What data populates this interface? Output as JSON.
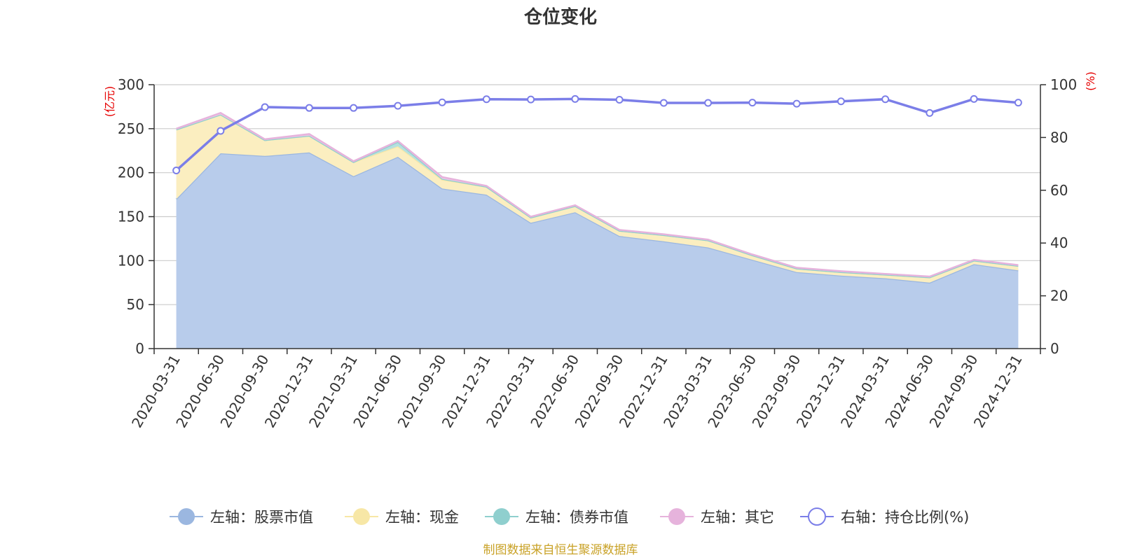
{
  "chart_data": {
    "type": "area",
    "title": "仓位变化",
    "categories": [
      "2020-03-31",
      "2020-06-30",
      "2020-09-30",
      "2020-12-31",
      "2021-03-31",
      "2021-06-30",
      "2021-09-30",
      "2021-12-31",
      "2022-03-31",
      "2022-06-30",
      "2022-09-30",
      "2022-12-31",
      "2023-03-31",
      "2023-06-30",
      "2023-09-30",
      "2023-12-31",
      "2024-03-31",
      "2024-06-30",
      "2024-09-30",
      "2024-12-31"
    ],
    "left_axis": {
      "unit": "(亿元)",
      "ylim": [
        0,
        300
      ],
      "ticks": [
        0,
        50,
        100,
        150,
        200,
        250,
        300
      ]
    },
    "right_axis": {
      "unit": "(%)",
      "ylim": [
        0,
        100
      ],
      "ticks": [
        0,
        20,
        40,
        60,
        80,
        100
      ]
    },
    "grid": true,
    "legend_position": "bottom",
    "series": [
      {
        "name": "左轴：股票市值",
        "axis": "left",
        "kind": "area",
        "color": "#9bb7e0",
        "fill": "#b8cceb",
        "values": [
          170,
          222,
          219,
          223,
          196,
          218,
          182,
          175,
          143,
          155,
          128,
          122,
          115,
          101,
          87,
          83,
          80,
          75,
          96,
          89
        ]
      },
      {
        "name": "左轴：现金",
        "axis": "left",
        "kind": "area",
        "color": "#f7e7a6",
        "fill": "#fbeec0",
        "values": [
          79,
          44,
          18,
          19,
          16,
          12,
          10,
          9,
          6,
          7,
          6,
          7,
          8,
          5,
          4,
          4,
          4,
          6,
          4,
          5
        ]
      },
      {
        "name": "左轴：债券市值",
        "axis": "left",
        "kind": "area",
        "color": "#8fcfce",
        "fill": "#b5e0df",
        "values": [
          0,
          0,
          0,
          0,
          0,
          5,
          1,
          0,
          0,
          0,
          0,
          0,
          0,
          0,
          0,
          0,
          0,
          0,
          0,
          0
        ]
      },
      {
        "name": "左轴：其它",
        "axis": "left",
        "kind": "area",
        "color": "#e6b3dc",
        "fill": "#efc9e7",
        "values": [
          1,
          2,
          1,
          2,
          1,
          1,
          2,
          1,
          1,
          1,
          1,
          1,
          1,
          1,
          1,
          1,
          1,
          1,
          1,
          1
        ]
      },
      {
        "name": "右轴：持仓比例(%)",
        "axis": "right",
        "kind": "line",
        "color": "#7b7ee8",
        "values": [
          67.5,
          82.5,
          91.5,
          91.2,
          91.2,
          92.0,
          93.3,
          94.5,
          94.4,
          94.6,
          94.3,
          93.1,
          93.1,
          93.2,
          92.8,
          93.7,
          94.5,
          89.3,
          94.6,
          93.2
        ]
      }
    ],
    "source_note": "制图数据来自恒生聚源数据库"
  }
}
